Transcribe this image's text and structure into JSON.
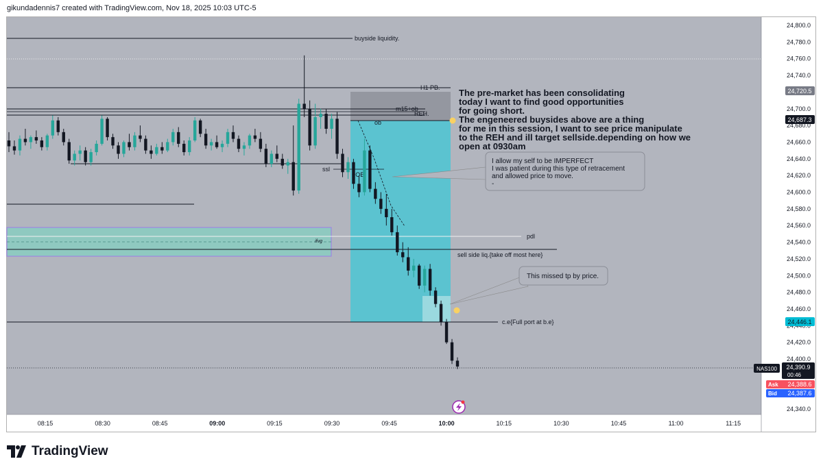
{
  "header": {
    "text": "gikundadennis7 created with TradingView.com, Nov 18, 2025 10:03 UTC-5"
  },
  "brand": {
    "name": "TradingView"
  },
  "colors": {
    "background": "#b2b5be",
    "bull": "#26a69a",
    "bear": "#131722",
    "zone": "#5bc3d0",
    "accent": "#00bcd4",
    "ask": "#f7525f",
    "bid": "#2962ff"
  },
  "price_axis": {
    "ticks": [
      "24,800.0",
      "24,780.0",
      "24,760.0",
      "24,740.0",
      "24,720.0",
      "24,700.0",
      "24,680.0",
      "24,660.0",
      "24,640.0",
      "24,620.0",
      "24,600.0",
      "24,580.0",
      "24,560.0",
      "24,540.0",
      "24,520.0",
      "24,500.0",
      "24,480.0",
      "24,460.0",
      "24,440.0",
      "24,420.0",
      "24,400.0",
      "24,340.0"
    ],
    "badges": {
      "h1": "24,720.5",
      "reh": "24,687.3",
      "ce": "24,446.1",
      "symbol": "NAS100",
      "last": "24,390.9",
      "timer": "00:46",
      "ask_label": "Ask",
      "ask": "24,388.6",
      "bid_label": "Bid",
      "bid": "24,387.6"
    }
  },
  "time_axis": {
    "ticks": [
      "08:15",
      "08:30",
      "08:45",
      "09:00",
      "09:15",
      "09:30",
      "09:45",
      "10:00",
      "10:15",
      "10:30",
      "10:45",
      "11:00",
      "11:15"
    ]
  },
  "annotations": {
    "buyside": "buyside liquidity.",
    "h1pb": "H1 PB.",
    "m15ob": "m15+ob",
    "reh": "REH.",
    "ob": "ob",
    "ssl": "ssl",
    "plus_ob": "+OB",
    "pdl": "pdl",
    "sellside": "sell side liq.{take off most here}",
    "ifvg": "ifvg",
    "ce": "c.e{Full port at b.e}"
  },
  "notes": {
    "premarket": "The pre-market has been consolidating\ntoday I want to find good opportunities\nfor going short.\nThe engeneered buysides above are a thing\nfor me in this session, I want to see price manipulate\nto the REH and ill target sellside.depending on how we\nopen at 0930am",
    "imperfect": "I allow my self to be IMPERFECT\nI was patient during this type of retracement\nand  allowed price to move.\n-",
    "missed": "This missed tp by price."
  },
  "chart_data": {
    "type": "candlestick",
    "symbol": "NAS100",
    "timeframe": "1m",
    "ylim": [
      24330,
      24820
    ],
    "x_ticks": [
      "08:15",
      "08:30",
      "08:45",
      "09:00",
      "09:15",
      "09:30",
      "09:45",
      "10:00",
      "10:15",
      "10:30",
      "10:45",
      "11:00",
      "11:15"
    ],
    "last_price": 24390.9,
    "levels": [
      {
        "label": "buyside liquidity.",
        "price": 24796
      },
      {
        "label": "H1 PB.",
        "price": 24720.5
      },
      {
        "label": "m15+ob",
        "price": 24698
      },
      {
        "label": "REH.",
        "price": 24687.3
      },
      {
        "label": "ssl",
        "price": 24637
      },
      {
        "label": "pdl",
        "price": 24548
      },
      {
        "label": "sell side liq.{take off most here}",
        "price": 24532
      },
      {
        "label": "c.e{Full port at b.e}",
        "price": 24446.1
      }
    ],
    "series": [
      {
        "type": "candles",
        "ohlc": [
          [
            24662,
            24672,
            24648,
            24655
          ],
          [
            24655,
            24662,
            24645,
            24650
          ],
          [
            24650,
            24668,
            24644,
            24664
          ],
          [
            24664,
            24676,
            24656,
            24660
          ],
          [
            24660,
            24668,
            24652,
            24666
          ],
          [
            24666,
            24674,
            24658,
            24662
          ],
          [
            24662,
            24666,
            24650,
            24654
          ],
          [
            24654,
            24670,
            24650,
            24668
          ],
          [
            24668,
            24692,
            24664,
            24686
          ],
          [
            24686,
            24690,
            24668,
            24672
          ],
          [
            24672,
            24676,
            24656,
            24660
          ],
          [
            24660,
            24664,
            24634,
            24638
          ],
          [
            24638,
            24650,
            24632,
            24646
          ],
          [
            24646,
            24656,
            24638,
            24650
          ],
          [
            24650,
            24654,
            24632,
            24636
          ],
          [
            24636,
            24652,
            24632,
            24648
          ],
          [
            24648,
            24662,
            24644,
            24658
          ],
          [
            24658,
            24692,
            24656,
            24688
          ],
          [
            24688,
            24690,
            24662,
            24666
          ],
          [
            24666,
            24670,
            24652,
            24656
          ],
          [
            24656,
            24660,
            24640,
            24646
          ],
          [
            24646,
            24662,
            24642,
            24660
          ],
          [
            24660,
            24670,
            24650,
            24654
          ],
          [
            24654,
            24672,
            24650,
            24668
          ],
          [
            24668,
            24680,
            24660,
            24664
          ],
          [
            24664,
            24668,
            24646,
            24650
          ],
          [
            24650,
            24656,
            24640,
            24646
          ],
          [
            24646,
            24658,
            24644,
            24654
          ],
          [
            24654,
            24660,
            24646,
            24650
          ],
          [
            24650,
            24664,
            24648,
            24660
          ],
          [
            24660,
            24676,
            24656,
            24672
          ],
          [
            24672,
            24678,
            24654,
            24658
          ],
          [
            24658,
            24662,
            24644,
            24648
          ],
          [
            24648,
            24666,
            24644,
            24662
          ],
          [
            24662,
            24690,
            24660,
            24686
          ],
          [
            24686,
            24688,
            24666,
            24670
          ],
          [
            24670,
            24676,
            24652,
            24656
          ],
          [
            24656,
            24664,
            24650,
            24660
          ],
          [
            24660,
            24668,
            24652,
            24654
          ],
          [
            24654,
            24662,
            24648,
            24658
          ],
          [
            24658,
            24676,
            24654,
            24672
          ],
          [
            24672,
            24680,
            24660,
            24664
          ],
          [
            24664,
            24668,
            24648,
            24652
          ],
          [
            24652,
            24660,
            24644,
            24656
          ],
          [
            24656,
            24670,
            24652,
            24668
          ],
          [
            24668,
            24676,
            24660,
            24664
          ],
          [
            24664,
            24672,
            24648,
            24652
          ],
          [
            24652,
            24658,
            24630,
            24634
          ],
          [
            24634,
            24650,
            24630,
            24646
          ],
          [
            24646,
            24656,
            24636,
            24640
          ],
          [
            24640,
            24646,
            24628,
            24632
          ],
          [
            24632,
            24640,
            24622,
            24636
          ],
          [
            24636,
            24680,
            24596,
            24602
          ],
          [
            24602,
            24712,
            24598,
            24706
          ],
          [
            24706,
            24764,
            24690,
            24700
          ],
          [
            24700,
            24710,
            24650,
            24656
          ],
          [
            24656,
            24706,
            24652,
            24690
          ],
          [
            24690,
            24700,
            24676,
            24694
          ],
          [
            24694,
            24700,
            24670,
            24676
          ],
          [
            24676,
            24694,
            24664,
            24688
          ],
          [
            24688,
            24696,
            24640,
            24646
          ],
          [
            24646,
            24652,
            24618,
            24624
          ],
          [
            24624,
            24642,
            24616,
            24636
          ],
          [
            24636,
            24640,
            24604,
            24610
          ],
          [
            24610,
            24620,
            24594,
            24600
          ],
          [
            24600,
            24664,
            24596,
            24650
          ],
          [
            24650,
            24656,
            24600,
            24604
          ],
          [
            24604,
            24612,
            24586,
            24592
          ],
          [
            24592,
            24600,
            24574,
            24580
          ],
          [
            24580,
            24598,
            24560,
            24570
          ],
          [
            24570,
            24580,
            24548,
            24552
          ],
          [
            24552,
            24560,
            24524,
            24528
          ],
          [
            24528,
            24540,
            24516,
            24522
          ],
          [
            24522,
            24534,
            24500,
            24506
          ],
          [
            24506,
            24520,
            24498,
            24512
          ],
          [
            24512,
            24514,
            24484,
            24488
          ],
          [
            24488,
            24512,
            24480,
            24508
          ],
          [
            24508,
            24514,
            24476,
            24482
          ],
          [
            24482,
            24486,
            24462,
            24466
          ],
          [
            24466,
            24470,
            24440,
            24444
          ],
          [
            24444,
            24448,
            24418,
            24420
          ],
          [
            24420,
            24424,
            24394,
            24398
          ],
          [
            24398,
            24402,
            24388,
            24391
          ]
        ]
      }
    ]
  }
}
